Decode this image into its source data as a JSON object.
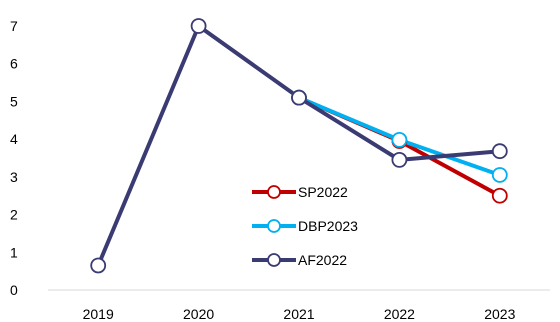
{
  "chart_data": {
    "type": "line",
    "title": "",
    "xlabel": "",
    "ylabel": "",
    "categories": [
      "2019",
      "2020",
      "2021",
      "2022",
      "2023"
    ],
    "ylim": [
      0,
      7
    ],
    "yticks": [
      "0",
      "1",
      "2",
      "3",
      "4",
      "5",
      "6",
      "7"
    ],
    "grid": false,
    "legend_position": "center-inside",
    "series": [
      {
        "name": "SP2022",
        "color": "#c00000",
        "values": [
          null,
          null,
          5.1,
          3.95,
          2.5
        ]
      },
      {
        "name": "DBP2023",
        "color": "#00b0f0",
        "values": [
          null,
          null,
          5.1,
          3.98,
          3.05
        ]
      },
      {
        "name": "AF2022",
        "color": "#3b3b73",
        "values": [
          0.65,
          7.0,
          5.1,
          3.45,
          3.68
        ]
      }
    ]
  }
}
